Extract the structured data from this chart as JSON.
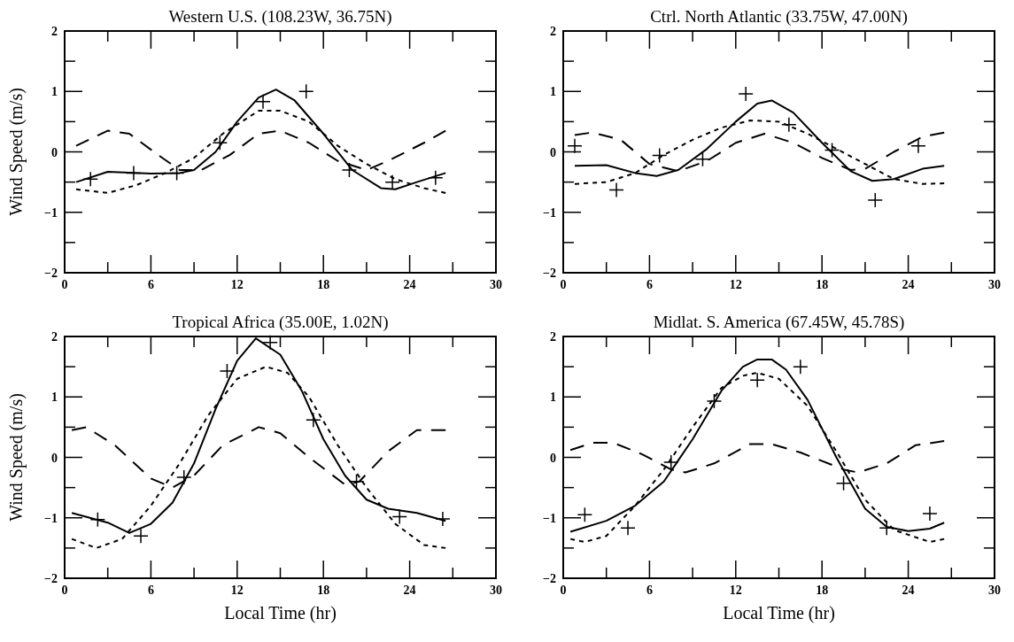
{
  "chart_data": [
    {
      "type": "line",
      "title": "Western U.S. (108.23W, 36.75N)",
      "ylabel": "Wind Speed (m/s)",
      "xlim": [
        0,
        30
      ],
      "ylim": [
        -2,
        2
      ],
      "xticks": [
        0,
        {
          "value": 3,
          "label": null
        },
        6,
        {
          "value": 9,
          "label": null
        },
        12,
        {
          "value": 15,
          "label": null
        },
        18,
        {
          "value": 21,
          "label": null
        },
        24,
        {
          "value": 27,
          "label": null
        },
        30
      ],
      "yticks": [
        -2,
        {
          "value": -1.5,
          "label": null
        },
        -1,
        {
          "value": -0.5,
          "label": null
        },
        0,
        {
          "value": 0.5,
          "label": null
        },
        1,
        {
          "value": 1.5,
          "label": null
        },
        2
      ],
      "series": [
        {
          "line_style": "solid",
          "marker": "none",
          "color": "#000000",
          "x": [
            0.8,
            3,
            6,
            8,
            9,
            10.5,
            12,
            13.5,
            14.7,
            16,
            18,
            20,
            22,
            23,
            24.5,
            26.5
          ],
          "values": [
            -0.5,
            -0.33,
            -0.36,
            -0.35,
            -0.3,
            0.0,
            0.5,
            0.9,
            1.03,
            0.85,
            0.3,
            -0.3,
            -0.6,
            -0.62,
            -0.5,
            -0.35
          ]
        },
        {
          "line_style": "dotted",
          "marker": "none",
          "color": "#000000",
          "x": [
            0.8,
            3,
            5,
            7,
            9,
            11,
            13.5,
            15,
            17,
            19,
            21,
            23,
            25,
            26.5
          ],
          "values": [
            -0.62,
            -0.68,
            -0.55,
            -0.35,
            -0.1,
            0.3,
            0.68,
            0.68,
            0.5,
            0.1,
            -0.2,
            -0.45,
            -0.6,
            -0.68
          ]
        },
        {
          "line_style": "dashed",
          "marker": "none",
          "color": "#000000",
          "x": [
            0.8,
            3,
            4.5,
            6.5,
            8,
            9.5,
            11.5,
            13.5,
            15,
            17,
            19,
            21,
            22.5,
            25,
            26.5
          ],
          "values": [
            0.1,
            0.35,
            0.3,
            -0.05,
            -0.3,
            -0.3,
            -0.05,
            0.3,
            0.35,
            0.15,
            -0.15,
            -0.3,
            -0.15,
            0.15,
            0.35
          ]
        },
        {
          "type": "scatter",
          "marker": "cross",
          "color": "#000000",
          "x": [
            1.8,
            4.8,
            7.8,
            10.8,
            13.8,
            16.8,
            19.8,
            22.8,
            25.8
          ],
          "values": [
            -0.45,
            -0.35,
            -0.35,
            0.15,
            0.83,
            1.0,
            -0.3,
            -0.5,
            -0.43
          ]
        }
      ]
    },
    {
      "type": "line",
      "title": "Ctrl. North Atlantic (33.75W, 47.00N)",
      "xlim": [
        0,
        30
      ],
      "ylim": [
        -2,
        2
      ],
      "xticks": [
        0,
        {
          "value": 3,
          "label": null
        },
        6,
        {
          "value": 9,
          "label": null
        },
        12,
        {
          "value": 15,
          "label": null
        },
        18,
        {
          "value": 21,
          "label": null
        },
        24,
        {
          "value": 27,
          "label": null
        },
        30
      ],
      "yticks": [
        -2,
        {
          "value": -1.5,
          "label": null
        },
        -1,
        {
          "value": -0.5,
          "label": null
        },
        0,
        {
          "value": 0.5,
          "label": null
        },
        1,
        {
          "value": 1.5,
          "label": null
        },
        2
      ],
      "series": [
        {
          "line_style": "solid",
          "marker": "none",
          "color": "#000000",
          "x": [
            0.8,
            3,
            5,
            6.5,
            8,
            10,
            12,
            13.5,
            14.5,
            16,
            18,
            20,
            21.5,
            23,
            25,
            26.5
          ],
          "values": [
            -0.23,
            -0.22,
            -0.35,
            -0.4,
            -0.3,
            0.05,
            0.5,
            0.8,
            0.85,
            0.65,
            0.15,
            -0.32,
            -0.48,
            -0.45,
            -0.28,
            -0.23
          ]
        },
        {
          "line_style": "dotted",
          "marker": "none",
          "color": "#000000",
          "x": [
            0.8,
            3,
            5,
            7,
            9,
            11,
            13,
            15,
            17,
            19,
            21,
            23,
            25,
            26.5
          ],
          "values": [
            -0.53,
            -0.5,
            -0.35,
            -0.05,
            0.2,
            0.4,
            0.52,
            0.5,
            0.3,
            0.05,
            -0.2,
            -0.45,
            -0.53,
            -0.52
          ]
        },
        {
          "line_style": "dashed",
          "marker": "none",
          "color": "#000000",
          "x": [
            0.8,
            2,
            4,
            6,
            8,
            10,
            12,
            14,
            16,
            18,
            20,
            21,
            23,
            25,
            26.5
          ],
          "values": [
            0.28,
            0.32,
            0.2,
            -0.2,
            -0.32,
            -0.15,
            0.15,
            0.3,
            0.15,
            -0.1,
            -0.3,
            -0.28,
            0.0,
            0.25,
            0.32
          ]
        },
        {
          "type": "scatter",
          "marker": "cross",
          "color": "#000000",
          "x": [
            0.8,
            3.7,
            6.7,
            9.7,
            12.7,
            15.7,
            18.7,
            21.7,
            24.7
          ],
          "values": [
            0.1,
            -0.63,
            -0.06,
            -0.12,
            0.96,
            0.45,
            0.03,
            -0.8,
            0.1
          ]
        }
      ]
    },
    {
      "type": "line",
      "title": "Tropical Africa (35.00E, 1.02N)",
      "xlabel": "Local Time (hr)",
      "ylabel": "Wind Speed (m/s)",
      "xlim": [
        0,
        30
      ],
      "ylim": [
        -2,
        2
      ],
      "xticks": [
        0,
        {
          "value": 3,
          "label": null
        },
        6,
        {
          "value": 9,
          "label": null
        },
        12,
        {
          "value": 15,
          "label": null
        },
        18,
        {
          "value": 21,
          "label": null
        },
        24,
        {
          "value": 27,
          "label": null
        },
        30
      ],
      "yticks": [
        -2,
        {
          "value": -1.5,
          "label": null
        },
        -1,
        {
          "value": -0.5,
          "label": null
        },
        0,
        {
          "value": 0.5,
          "label": null
        },
        1,
        {
          "value": 1.5,
          "label": null
        },
        2
      ],
      "series": [
        {
          "line_style": "solid",
          "marker": "none",
          "color": "#000000",
          "x": [
            0.5,
            3,
            4.5,
            6,
            7.5,
            9,
            10.5,
            12,
            13.3,
            15,
            16.5,
            18,
            19.5,
            21,
            22.5,
            24.5,
            26.5
          ],
          "values": [
            -0.92,
            -1.08,
            -1.25,
            -1.1,
            -0.75,
            -0.1,
            0.8,
            1.6,
            1.97,
            1.7,
            1.1,
            0.3,
            -0.3,
            -0.7,
            -0.85,
            -0.92,
            -1.05
          ]
        },
        {
          "line_style": "dotted",
          "marker": "none",
          "color": "#000000",
          "x": [
            0.5,
            2.2,
            4,
            6,
            8,
            10,
            12,
            14,
            15.5,
            17,
            19,
            21,
            23,
            25,
            26.5
          ],
          "values": [
            -1.35,
            -1.5,
            -1.35,
            -0.8,
            -0.1,
            0.7,
            1.3,
            1.5,
            1.4,
            1.0,
            0.2,
            -0.5,
            -1.1,
            -1.45,
            -1.5
          ]
        },
        {
          "line_style": "dashed",
          "marker": "none",
          "color": "#000000",
          "x": [
            0.5,
            1.5,
            3.5,
            6,
            7.5,
            9,
            11,
            13.5,
            15,
            17,
            19.5,
            20.5,
            22.5,
            24.5,
            26.5
          ],
          "values": [
            0.45,
            0.5,
            0.2,
            -0.35,
            -0.5,
            -0.3,
            0.2,
            0.5,
            0.4,
            0.0,
            -0.45,
            -0.4,
            0.1,
            0.45,
            0.45
          ]
        },
        {
          "type": "scatter",
          "marker": "cross",
          "color": "#000000",
          "x": [
            2.3,
            5.3,
            8.3,
            11.3,
            14.3,
            17.3,
            20.3,
            23.3,
            26.3
          ],
          "values": [
            -1.03,
            -1.3,
            -0.33,
            1.43,
            1.9,
            0.62,
            -0.4,
            -0.98,
            -1.02
          ]
        }
      ]
    },
    {
      "type": "line",
      "title": "Midlat. S. America (67.45W, 45.78S)",
      "xlabel": "Local Time (hr)",
      "xlim": [
        0,
        30
      ],
      "ylim": [
        -2,
        2
      ],
      "xticks": [
        0,
        {
          "value": 3,
          "label": null
        },
        6,
        {
          "value": 9,
          "label": null
        },
        12,
        {
          "value": 15,
          "label": null
        },
        18,
        {
          "value": 21,
          "label": null
        },
        24,
        {
          "value": 27,
          "label": null
        },
        30
      ],
      "yticks": [
        -2,
        {
          "value": -1.5,
          "label": null
        },
        -1,
        {
          "value": -0.5,
          "label": null
        },
        0,
        {
          "value": 0.5,
          "label": null
        },
        1,
        {
          "value": 1.5,
          "label": null
        },
        2
      ],
      "series": [
        {
          "line_style": "solid",
          "marker": "none",
          "color": "#000000",
          "x": [
            0.5,
            3,
            5,
            7,
            9,
            11,
            12.5,
            13.5,
            14.5,
            15.5,
            17,
            19,
            21,
            22.5,
            24,
            25.5,
            26.5
          ],
          "values": [
            -1.23,
            -1.05,
            -0.8,
            -0.4,
            0.3,
            1.1,
            1.5,
            1.62,
            1.62,
            1.45,
            0.95,
            0.0,
            -0.85,
            -1.15,
            -1.22,
            -1.18,
            -1.08
          ]
        },
        {
          "line_style": "dotted",
          "marker": "none",
          "color": "#000000",
          "x": [
            0.5,
            1.5,
            3,
            5,
            7,
            9,
            11,
            12.5,
            13.5,
            15,
            17,
            19,
            21,
            23,
            25.5,
            26.5
          ],
          "values": [
            -1.35,
            -1.4,
            -1.3,
            -0.8,
            -0.2,
            0.5,
            1.15,
            1.35,
            1.4,
            1.3,
            0.85,
            0.1,
            -0.7,
            -1.2,
            -1.4,
            -1.35
          ]
        },
        {
          "line_style": "dashed",
          "marker": "none",
          "color": "#000000",
          "x": [
            0.5,
            2,
            3.5,
            5.5,
            7.5,
            8.5,
            10.5,
            13,
            14.5,
            16.5,
            19.5,
            20.5,
            22.5,
            24.5,
            26.5
          ],
          "values": [
            0.12,
            0.24,
            0.24,
            0.05,
            -0.2,
            -0.25,
            -0.1,
            0.22,
            0.22,
            0.08,
            -0.2,
            -0.25,
            -0.1,
            0.2,
            0.27
          ]
        },
        {
          "type": "scatter",
          "marker": "cross",
          "color": "#000000",
          "x": [
            1.5,
            4.5,
            7.5,
            10.5,
            13.5,
            16.5,
            19.5,
            22.5,
            25.5
          ],
          "values": [
            -0.95,
            -1.17,
            -0.08,
            0.93,
            1.28,
            1.5,
            -0.43,
            -1.17,
            -0.93
          ]
        }
      ]
    }
  ]
}
